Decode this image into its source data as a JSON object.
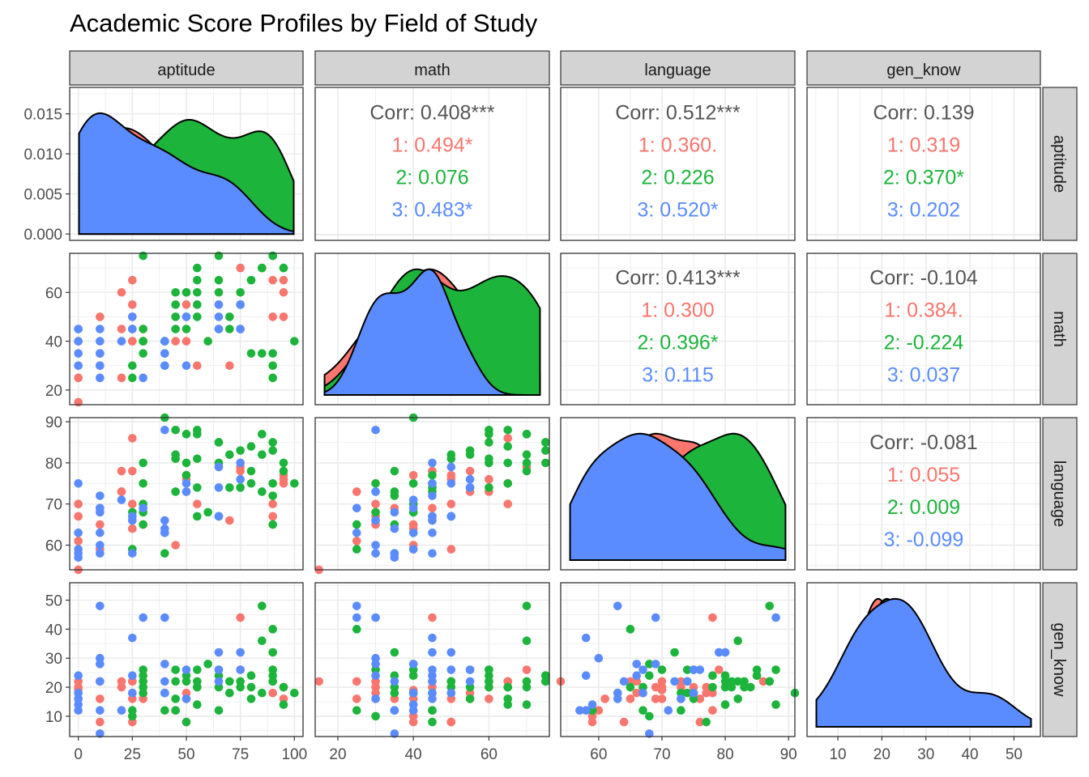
{
  "title": "Academic Score Profiles by Field of Study",
  "colors": {
    "1": "#F8766D",
    "2": "#1DB43B",
    "3": "#5B8CFF",
    "corr_overall": "#555555",
    "strip_bg": "#D3D3D3",
    "grid": "#EBEBEB",
    "axis_text": "#4D4D4D"
  },
  "chart_data": {
    "type": "scatter",
    "variables": [
      "aptitude",
      "math",
      "language",
      "gen_know"
    ],
    "group_names": [
      "1",
      "2",
      "3"
    ],
    "axis_ranges": {
      "aptitude": [
        -4,
        104
      ],
      "math": [
        14,
        76
      ],
      "language": [
        54,
        91
      ],
      "gen_know": [
        3,
        56
      ]
    },
    "x_ticks": {
      "aptitude": [
        "0",
        "25",
        "50",
        "75",
        "100"
      ],
      "math": [
        "20",
        "40",
        "60"
      ],
      "language": [
        "60",
        "70",
        "80",
        "90"
      ],
      "gen_know": [
        "10",
        "20",
        "30",
        "40",
        "50"
      ]
    },
    "y_ticks": {
      "aptitude": [
        "0.000",
        "0.005",
        "0.010",
        "0.015"
      ],
      "math": [
        "20",
        "40",
        "60"
      ],
      "language": [
        "60",
        "70",
        "80",
        "90"
      ],
      "gen_know": [
        "10",
        "20",
        "30",
        "40",
        "50"
      ]
    },
    "density_y_range": [
      -0.0008,
      0.0183
    ],
    "grid": true,
    "correlations": [
      {
        "row": 0,
        "col": 1,
        "lines": [
          "Corr: 0.408***",
          "1: 0.494*",
          "2: 0.076",
          "3: 0.483*"
        ]
      },
      {
        "row": 0,
        "col": 2,
        "lines": [
          "Corr: 0.512***",
          "1: 0.360.",
          "2: 0.226",
          "3: 0.520*"
        ]
      },
      {
        "row": 0,
        "col": 3,
        "lines": [
          "Corr: 0.139",
          "1: 0.319",
          "2: 0.370*",
          "3: 0.202"
        ]
      },
      {
        "row": 1,
        "col": 2,
        "lines": [
          "Corr: 0.413***",
          "1: 0.300",
          "2: 0.396*",
          "3: 0.115"
        ]
      },
      {
        "row": 1,
        "col": 3,
        "lines": [
          "Corr: -0.104",
          "1: 0.384.",
          "2: -0.224",
          "3: 0.037"
        ]
      },
      {
        "row": 2,
        "col": 3,
        "lines": [
          "Corr: -0.081",
          "1: 0.055",
          "2: 0.009",
          "3: -0.099"
        ]
      }
    ],
    "points": {
      "1": [
        [
          0,
          15,
          54,
          22
        ],
        [
          0,
          25,
          61,
          16
        ],
        [
          0,
          30,
          67,
          20
        ],
        [
          0,
          40,
          70,
          19
        ],
        [
          10,
          30,
          65,
          22
        ],
        [
          10,
          35,
          69,
          16
        ],
        [
          10,
          50,
          59,
          8
        ],
        [
          20,
          25,
          73,
          22
        ],
        [
          20,
          45,
          78,
          12
        ],
        [
          20,
          60,
          73,
          20
        ],
        [
          25,
          40,
          59,
          10
        ],
        [
          25,
          40,
          64,
          8
        ],
        [
          25,
          45,
          66,
          22
        ],
        [
          25,
          50,
          70,
          16
        ],
        [
          25,
          55,
          78,
          18
        ],
        [
          25,
          65,
          86,
          22
        ],
        [
          30,
          40,
          65,
          16
        ],
        [
          30,
          45,
          69,
          20
        ],
        [
          45,
          40,
          60,
          12
        ],
        [
          50,
          40,
          77,
          18
        ],
        [
          50,
          50,
          76,
          8
        ],
        [
          50,
          55,
          73,
          16
        ],
        [
          55,
          30,
          70,
          20
        ],
        [
          70,
          30,
          66,
          18
        ],
        [
          75,
          45,
          78,
          44
        ],
        [
          75,
          70,
          79,
          26
        ],
        [
          90,
          50,
          67,
          18
        ],
        [
          90,
          65,
          70,
          22
        ],
        [
          95,
          50,
          77,
          20
        ],
        [
          95,
          60,
          76,
          16
        ],
        [
          95,
          65,
          75,
          20
        ]
      ],
      "2": [
        [
          25,
          25,
          59,
          12
        ],
        [
          25,
          30,
          68,
          10
        ],
        [
          30,
          35,
          65,
          20
        ],
        [
          30,
          40,
          68,
          24
        ],
        [
          30,
          40,
          70,
          26
        ],
        [
          30,
          45,
          75,
          18
        ],
        [
          30,
          75,
          80,
          22
        ],
        [
          40,
          35,
          58,
          12
        ],
        [
          40,
          40,
          63,
          18
        ],
        [
          40,
          40,
          91,
          18
        ],
        [
          45,
          45,
          73,
          12
        ],
        [
          45,
          50,
          81,
          22
        ],
        [
          45,
          55,
          82,
          16
        ],
        [
          45,
          60,
          88,
          26
        ],
        [
          50,
          45,
          77,
          8
        ],
        [
          50,
          60,
          80,
          24
        ],
        [
          50,
          60,
          87,
          22
        ],
        [
          55,
          50,
          67,
          20
        ],
        [
          55,
          55,
          74,
          26
        ],
        [
          55,
          60,
          81,
          20
        ],
        [
          55,
          65,
          88,
          14
        ],
        [
          55,
          70,
          87,
          22
        ],
        [
          65,
          45,
          67,
          12
        ],
        [
          65,
          60,
          85,
          26
        ],
        [
          65,
          65,
          80,
          20
        ],
        [
          65,
          75,
          85,
          24
        ],
        [
          70,
          45,
          74,
          18
        ],
        [
          70,
          50,
          82,
          22
        ],
        [
          75,
          55,
          83,
          20
        ],
        [
          75,
          60,
          74,
          22
        ],
        [
          80,
          65,
          84,
          20
        ],
        [
          80,
          65,
          75,
          16
        ],
        [
          85,
          35,
          73,
          18
        ],
        [
          85,
          70,
          87,
          48
        ],
        [
          85,
          70,
          82,
          36
        ],
        [
          90,
          25,
          65,
          40
        ],
        [
          90,
          35,
          72,
          32
        ],
        [
          90,
          30,
          75,
          26
        ],
        [
          90,
          75,
          85,
          24
        ],
        [
          95,
          70,
          80,
          14
        ],
        [
          95,
          70,
          78,
          20
        ],
        [
          100,
          40,
          75,
          18
        ],
        [
          90,
          75,
          83,
          22
        ],
        [
          80,
          35,
          78,
          24
        ],
        [
          60,
          40,
          68,
          28
        ]
      ],
      "3": [
        [
          0,
          35,
          57,
          12
        ],
        [
          0,
          40,
          59,
          14
        ],
        [
          0,
          45,
          63,
          16
        ],
        [
          0,
          30,
          58,
          24
        ],
        [
          0,
          45,
          75,
          18
        ],
        [
          10,
          35,
          58,
          12
        ],
        [
          10,
          45,
          72,
          22
        ],
        [
          10,
          40,
          69,
          28
        ],
        [
          10,
          25,
          63,
          48
        ],
        [
          10,
          30,
          60,
          30
        ],
        [
          10,
          35,
          68,
          4
        ],
        [
          20,
          40,
          71,
          12
        ],
        [
          25,
          50,
          67,
          18
        ],
        [
          25,
          45,
          66,
          24
        ],
        [
          25,
          45,
          58,
          37
        ],
        [
          30,
          25,
          69,
          44
        ],
        [
          40,
          30,
          88,
          44
        ],
        [
          40,
          30,
          66,
          28
        ],
        [
          40,
          35,
          64,
          22
        ],
        [
          40,
          40,
          63,
          18
        ],
        [
          50,
          30,
          73,
          16
        ],
        [
          50,
          50,
          75,
          26
        ],
        [
          65,
          45,
          67,
          26
        ],
        [
          65,
          50,
          79,
          32
        ],
        [
          65,
          55,
          74,
          22
        ],
        [
          75,
          45,
          80,
          32
        ],
        [
          75,
          55,
          76,
          26
        ]
      ]
    }
  }
}
